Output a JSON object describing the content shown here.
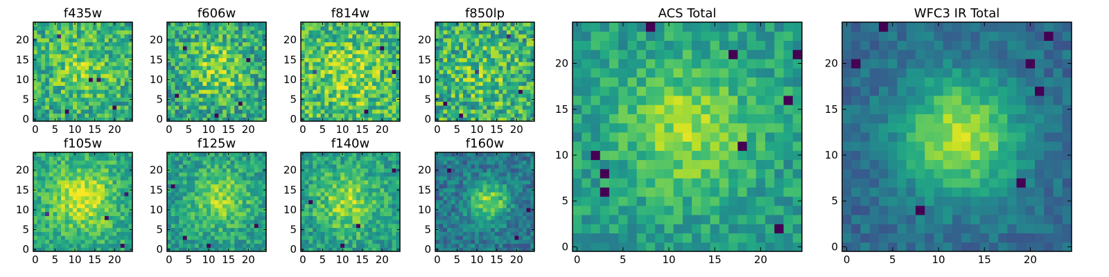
{
  "chart_data": [
    {
      "type": "heatmap",
      "title": "f435w",
      "x_ticks": [
        "0",
        "5",
        "10",
        "15",
        "20"
      ],
      "y_ticks": [
        "0",
        "5",
        "10",
        "15",
        "20"
      ],
      "xlim": [
        0,
        24
      ],
      "ylim": [
        0,
        24
      ],
      "grid_size": 25,
      "center": [
        12,
        13
      ],
      "sigma": 5.5,
      "peak": 0.18,
      "noise": 0.22,
      "baseline": 0.62,
      "hotspots": [
        [
          14,
          10,
          0.9
        ],
        [
          16,
          10,
          0.85
        ],
        [
          6,
          21,
          0.7
        ],
        [
          20,
          3,
          0.7
        ],
        [
          8,
          2,
          0.6
        ]
      ],
      "seed": 11,
      "colormap": "viridis"
    },
    {
      "type": "heatmap",
      "title": "f606w",
      "x_ticks": [
        "0",
        "5",
        "10",
        "15",
        "20"
      ],
      "y_ticks": [
        "0",
        "5",
        "10",
        "15",
        "20"
      ],
      "xlim": [
        0,
        24
      ],
      "ylim": [
        0,
        24
      ],
      "grid_size": 25,
      "center": [
        12,
        13
      ],
      "sigma": 5.5,
      "peak": 0.25,
      "noise": 0.24,
      "baseline": 0.58,
      "hotspots": [
        [
          2,
          6,
          0.8
        ],
        [
          18,
          4,
          0.7
        ],
        [
          20,
          15,
          0.6
        ],
        [
          4,
          18,
          0.7
        ],
        [
          12,
          1,
          0.6
        ]
      ],
      "seed": 23,
      "colormap": "viridis"
    },
    {
      "type": "heatmap",
      "title": "f814w",
      "x_ticks": [
        "0",
        "5",
        "10",
        "15",
        "20"
      ],
      "y_ticks": [
        "0",
        "5",
        "10",
        "15",
        "20"
      ],
      "xlim": [
        0,
        24
      ],
      "ylim": [
        0,
        24
      ],
      "grid_size": 25,
      "center": [
        12,
        12
      ],
      "sigma": 6,
      "peak": 0.18,
      "noise": 0.24,
      "baseline": 0.66,
      "hotspots": [
        [
          20,
          18,
          0.8
        ],
        [
          23,
          12,
          0.7
        ],
        [
          16,
          2,
          0.7
        ],
        [
          3,
          12,
          0.6
        ]
      ],
      "seed": 37,
      "colormap": "viridis"
    },
    {
      "type": "heatmap",
      "title": "f850lp",
      "x_ticks": [
        "0",
        "5",
        "10",
        "15",
        "20"
      ],
      "y_ticks": [
        "0",
        "5",
        "10",
        "15",
        "20"
      ],
      "xlim": [
        0,
        24
      ],
      "ylim": [
        0,
        24
      ],
      "grid_size": 25,
      "center": [
        12,
        12
      ],
      "sigma": 6,
      "peak": 0.12,
      "noise": 0.26,
      "baseline": 0.62,
      "hotspots": [
        [
          2,
          4,
          0.8
        ],
        [
          21,
          7,
          0.7
        ],
        [
          10,
          12,
          0.6
        ],
        [
          18,
          21,
          0.6
        ],
        [
          6,
          1,
          0.6
        ]
      ],
      "seed": 41,
      "colormap": "viridis"
    },
    {
      "type": "heatmap",
      "title": "f105w",
      "x_ticks": [
        "0",
        "5",
        "10",
        "15",
        "20"
      ],
      "y_ticks": [
        "0",
        "5",
        "10",
        "15",
        "20"
      ],
      "xlim": [
        0,
        24
      ],
      "ylim": [
        0,
        24
      ],
      "grid_size": 25,
      "center": [
        12,
        13
      ],
      "sigma": 5.5,
      "peak": 0.35,
      "noise": 0.16,
      "baseline": 0.6,
      "hotspots": [
        [
          18,
          8,
          0.85
        ],
        [
          22,
          1,
          0.8
        ],
        [
          23,
          14,
          0.6
        ],
        [
          3,
          9,
          0.6
        ]
      ],
      "seed": 53,
      "colormap": "viridis"
    },
    {
      "type": "heatmap",
      "title": "f125w",
      "x_ticks": [
        "0",
        "5",
        "10",
        "15",
        "20"
      ],
      "y_ticks": [
        "0",
        "5",
        "10",
        "15",
        "20"
      ],
      "xlim": [
        0,
        24
      ],
      "ylim": [
        0,
        24
      ],
      "grid_size": 25,
      "center": [
        13,
        13
      ],
      "sigma": 5,
      "peak": 0.3,
      "noise": 0.16,
      "baseline": 0.55,
      "hotspots": [
        [
          1,
          16,
          0.8
        ],
        [
          4,
          3,
          0.7
        ],
        [
          22,
          6,
          0.6
        ],
        [
          10,
          1,
          0.6
        ]
      ],
      "seed": 67,
      "colormap": "viridis"
    },
    {
      "type": "heatmap",
      "title": "f140w",
      "x_ticks": [
        "0",
        "5",
        "10",
        "15",
        "20"
      ],
      "y_ticks": [
        "0",
        "5",
        "10",
        "15",
        "20"
      ],
      "xlim": [
        0,
        24
      ],
      "ylim": [
        0,
        24
      ],
      "grid_size": 25,
      "center": [
        11,
        12
      ],
      "sigma": 5.5,
      "peak": 0.3,
      "noise": 0.17,
      "baseline": 0.55,
      "hotspots": [
        [
          14,
          6,
          0.8
        ],
        [
          10,
          1,
          0.85
        ],
        [
          23,
          20,
          0.6
        ],
        [
          2,
          12,
          0.6
        ]
      ],
      "seed": 79,
      "colormap": "viridis"
    },
    {
      "type": "heatmap",
      "title": "f160w",
      "x_ticks": [
        "0",
        "5",
        "10",
        "15",
        "20"
      ],
      "y_ticks": [
        "0",
        "5",
        "10",
        "15",
        "20"
      ],
      "xlim": [
        0,
        24
      ],
      "ylim": [
        0,
        24
      ],
      "grid_size": 25,
      "center": [
        13,
        12
      ],
      "sigma": 3.5,
      "peak": 0.45,
      "noise": 0.15,
      "baseline": 0.4,
      "hotspots": [
        [
          3,
          20,
          0.6
        ],
        [
          20,
          3,
          0.6
        ],
        [
          23,
          10,
          0.5
        ]
      ],
      "seed": 83,
      "colormap": "viridis"
    },
    {
      "type": "heatmap",
      "title": "ACS Total",
      "x_ticks": [
        "0",
        "5",
        "10",
        "15",
        "20"
      ],
      "y_ticks": [
        "0",
        "5",
        "10",
        "15",
        "20"
      ],
      "xlim": [
        0,
        24
      ],
      "ylim": [
        0,
        24
      ],
      "grid_size": 25,
      "center": [
        12,
        13
      ],
      "sigma": 5,
      "peak": 0.3,
      "noise": 0.14,
      "baseline": 0.55,
      "hotspots": [
        [
          3,
          6,
          0.95
        ],
        [
          3,
          8,
          0.8
        ],
        [
          2,
          10,
          0.8
        ],
        [
          18,
          11,
          0.8
        ],
        [
          23,
          16,
          0.7
        ],
        [
          17,
          21,
          0.8
        ],
        [
          8,
          24,
          0.8
        ],
        [
          24,
          21,
          0.8
        ],
        [
          22,
          2,
          0.7
        ]
      ],
      "seed": 97,
      "colormap": "viridis"
    },
    {
      "type": "heatmap",
      "title": "WFC3 IR Total",
      "x_ticks": [
        "0",
        "5",
        "10",
        "15",
        "20"
      ],
      "y_ticks": [
        "0",
        "5",
        "10",
        "15",
        "20"
      ],
      "xlim": [
        0,
        24
      ],
      "ylim": [
        0,
        24
      ],
      "grid_size": 25,
      "center": [
        12.5,
        12
      ],
      "sigma": 4.5,
      "peak": 0.55,
      "noise": 0.1,
      "baseline": 0.35,
      "hotspots": [
        [
          1,
          20,
          0.7
        ],
        [
          20,
          20,
          0.8
        ],
        [
          21,
          17,
          0.7
        ],
        [
          22,
          23,
          0.6
        ],
        [
          19,
          7,
          0.7
        ],
        [
          8,
          4,
          0.6
        ],
        [
          4,
          24,
          0.6
        ]
      ],
      "seed": 101,
      "colormap": "viridis"
    }
  ]
}
